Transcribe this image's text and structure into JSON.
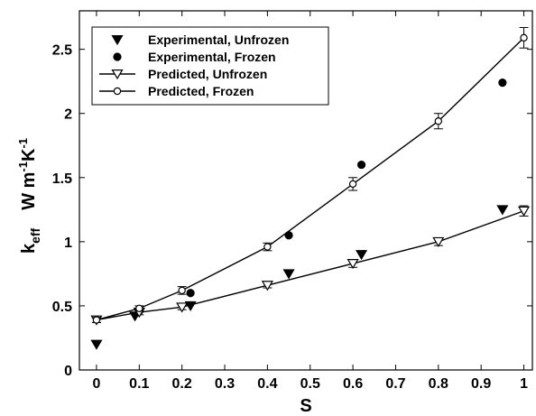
{
  "chart_data": {
    "type": "line",
    "xlabel": "S",
    "ylabel": {
      "k": "k",
      "k_sub": "eff",
      "unit_w": "W m",
      "unit_sup1": "-1",
      "unit_k": "K",
      "unit_sup2": "-1"
    },
    "xlim": [
      -0.04,
      1.02
    ],
    "ylim": [
      0,
      2.8
    ],
    "xticks": [
      0,
      0.1,
      0.2,
      0.3,
      0.4,
      0.5,
      0.6,
      0.7,
      0.8,
      0.9,
      1
    ],
    "xtick_labels": [
      "0",
      "0.1",
      "0.2",
      "0.3",
      "0.4",
      "0.5",
      "0.6",
      "0.7",
      "0.8",
      "0.9",
      "1"
    ],
    "yticks": [
      0,
      0.5,
      1,
      1.5,
      2,
      2.5
    ],
    "ytick_labels": [
      "0",
      "0.5",
      "1",
      "1.5",
      "2",
      "2.5"
    ],
    "grid": false,
    "legend_position": "top-left",
    "series": [
      {
        "name": "Experimental, Unfrozen",
        "marker": "filled-triangle-down",
        "line": false,
        "x": [
          0,
          0.09,
          0.1,
          0.22,
          0.45,
          0.62,
          0.95
        ],
        "y": [
          0.2,
          0.42,
          0.45,
          0.5,
          0.75,
          0.9,
          1.25
        ]
      },
      {
        "name": "Experimental, Frozen",
        "marker": "filled-circle",
        "line": false,
        "x": [
          0.1,
          0.22,
          0.45,
          0.62,
          0.95
        ],
        "y": [
          0.46,
          0.6,
          1.05,
          1.6,
          2.24
        ]
      },
      {
        "name": "Predicted, Unfrozen",
        "marker": "open-triangle-down",
        "line": true,
        "x": [
          0,
          0.1,
          0.2,
          0.4,
          0.6,
          0.8,
          1
        ],
        "y": [
          0.39,
          0.45,
          0.49,
          0.66,
          0.83,
          1.0,
          1.24
        ],
        "err": [
          0.02,
          0.02,
          0.02,
          0.02,
          0.03,
          0.03,
          0.04
        ]
      },
      {
        "name": "Predicted, Frozen",
        "marker": "open-circle",
        "line": true,
        "x": [
          0,
          0.1,
          0.2,
          0.4,
          0.6,
          0.8,
          1
        ],
        "y": [
          0.39,
          0.48,
          0.62,
          0.96,
          1.45,
          1.94,
          2.59
        ],
        "err": [
          0.02,
          0.02,
          0.03,
          0.03,
          0.05,
          0.06,
          0.08
        ]
      }
    ]
  }
}
